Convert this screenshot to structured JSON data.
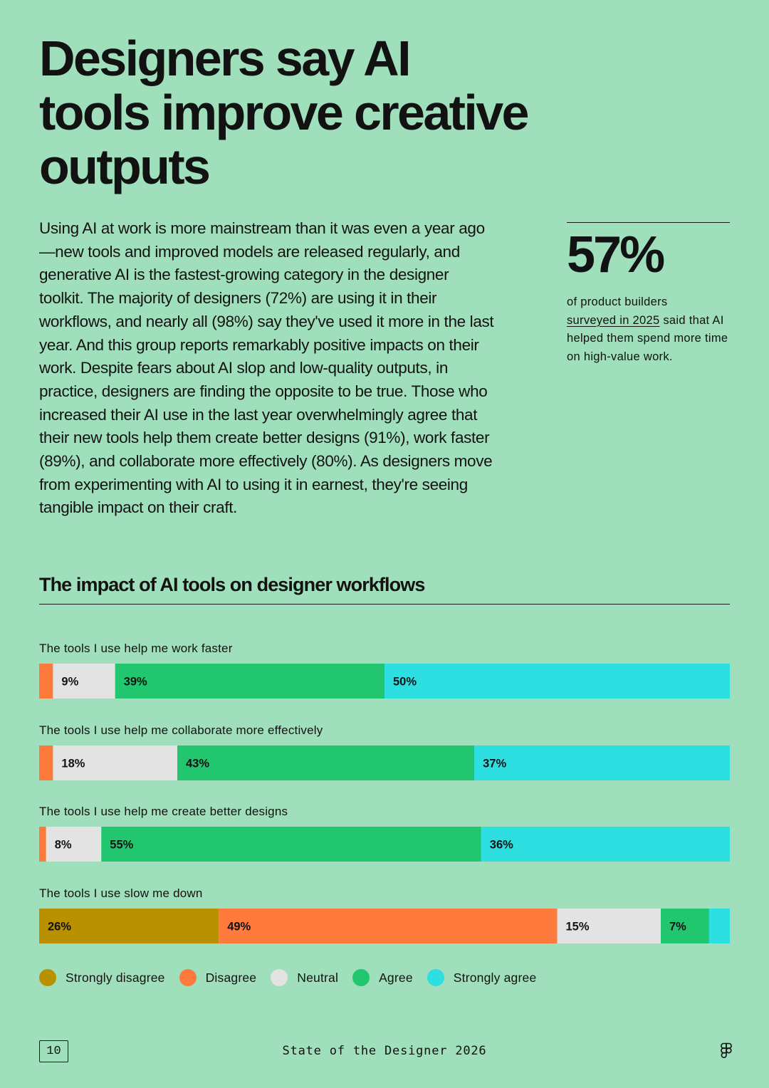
{
  "headline": {
    "line1": "Designers say AI",
    "line2": "tools improve creative",
    "line3": "outputs"
  },
  "intro_paragraph": "Using AI at work is more mainstream than it was even a year ago—new tools and improved models are released regularly, and generative AI is the fastest-growing category in the designer toolkit. The majority of designers (72%) are using it in their workflows, and nearly all (98%) say they've used it more in the last year. And this group reports remarkably positive impacts on their work. Despite fears about AI slop and low-quality outputs, in practice, designers are finding the opposite to be true. Those who increased their AI use in the last year overwhelmingly agree that their new tools help them create better designs (91%), work faster (89%), and collaborate more effectively (80%). As designers move from experimenting with AI to using it in earnest, they're seeing tangible impact on their craft.",
  "stat": {
    "value": "57%",
    "caption_before": "of product builders",
    "caption_link": "surveyed in 2025",
    "caption_after": "said that AI helped them spend more time on high-value work."
  },
  "footer": {
    "page_number": "10",
    "title": "State of the Designer 2026",
    "logo_icon": "figma-logo-icon"
  },
  "chart_data": {
    "type": "bar",
    "orientation": "horizontal",
    "stacked": true,
    "normalized": true,
    "title": "The impact of AI tools on designer workflows",
    "categories": [
      "The tools I use help me work faster",
      "The tools I use help me collaborate more effectively",
      "The tools I use help me create better designs",
      "The tools I use slow me down"
    ],
    "series": [
      {
        "name": "Strongly disagree",
        "color": "#b89000",
        "values": [
          0,
          0,
          0,
          26
        ]
      },
      {
        "name": "Disagree",
        "color": "#ff7a3d",
        "values": [
          2,
          2,
          1,
          49
        ]
      },
      {
        "name": "Neutral",
        "color": "#e3e3e3",
        "values": [
          9,
          18,
          8,
          15
        ]
      },
      {
        "name": "Agree",
        "color": "#22c66f",
        "values": [
          39,
          43,
          55,
          7
        ]
      },
      {
        "name": "Strongly agree",
        "color": "#2ddfe0",
        "values": [
          50,
          37,
          36,
          3
        ]
      }
    ],
    "data_labels": [
      [
        null,
        null,
        "9%",
        "39%",
        "50%"
      ],
      [
        null,
        null,
        "18%",
        "43%",
        "37%"
      ],
      [
        null,
        null,
        "8%",
        "55%",
        "36%"
      ],
      [
        "26%",
        "49%",
        "15%",
        "7%",
        null
      ]
    ],
    "legend_position": "bottom-left",
    "xlim": [
      0,
      100
    ]
  }
}
